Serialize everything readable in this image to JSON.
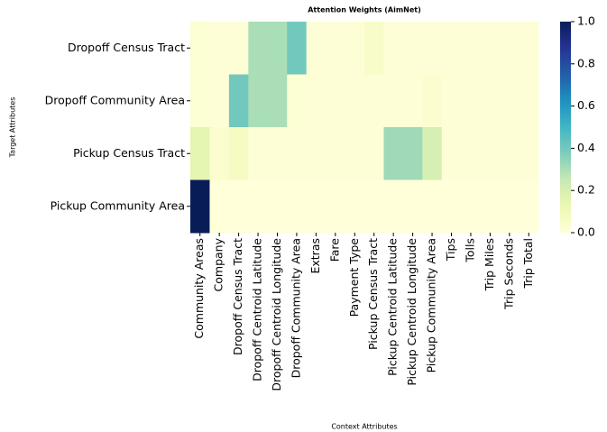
{
  "chart_data": {
    "type": "heatmap",
    "title": "Attention Weights (AimNet)",
    "x_label": "Context Attributes",
    "y_label": "Target Attributes",
    "x_categories": [
      "Community Areas",
      "Company",
      "Dropoff Census Tract",
      "Dropoff Centroid Latitude",
      "Dropoff Centroid Longitude",
      "Dropoff Community Area",
      "Extras",
      "Fare",
      "Payment Type",
      "Pickup Census Tract",
      "Pickup Centroid Latitude",
      "Pickup Centroid Longitude",
      "Pickup Community Area",
      "Tips",
      "Tolls",
      "Trip Miles",
      "Trip Seconds",
      "Trip Total"
    ],
    "y_categories": [
      "Dropoff Census Tract",
      "Dropoff Community Area",
      "Pickup Census Tract",
      "Pickup Community Area"
    ],
    "values": [
      [
        0.02,
        0.01,
        0.01,
        0.3,
        0.3,
        0.4,
        0.01,
        0.01,
        0.01,
        0.05,
        0.01,
        0.01,
        0.01,
        0.01,
        0.01,
        0.01,
        0.01,
        0.01
      ],
      [
        0.02,
        0.01,
        0.4,
        0.3,
        0.3,
        0.02,
        0.01,
        0.01,
        0.01,
        0.01,
        0.01,
        0.01,
        0.03,
        0.01,
        0.01,
        0.01,
        0.01,
        0.01
      ],
      [
        0.15,
        0.03,
        0.07,
        0.01,
        0.01,
        0.01,
        0.01,
        0.01,
        0.01,
        0.01,
        0.32,
        0.32,
        0.2,
        0.01,
        0.01,
        0.01,
        0.01,
        0.01
      ],
      [
        1.0,
        0.0,
        0.0,
        0.0,
        0.0,
        0.0,
        0.0,
        0.0,
        0.0,
        0.0,
        0.0,
        0.0,
        0.0,
        0.0,
        0.0,
        0.0,
        0.0,
        0.0
      ]
    ],
    "colormap": "YlGnBu",
    "clim": [
      0,
      1
    ],
    "cticks": [
      {
        "value": 0,
        "label": "0.0"
      },
      {
        "value": 0.2,
        "label": "0.2"
      },
      {
        "value": 0.4,
        "label": "0.4"
      },
      {
        "value": 0.6,
        "label": "0.6"
      },
      {
        "value": 0.8,
        "label": "0.8"
      },
      {
        "value": 1,
        "label": "1.0"
      }
    ]
  }
}
